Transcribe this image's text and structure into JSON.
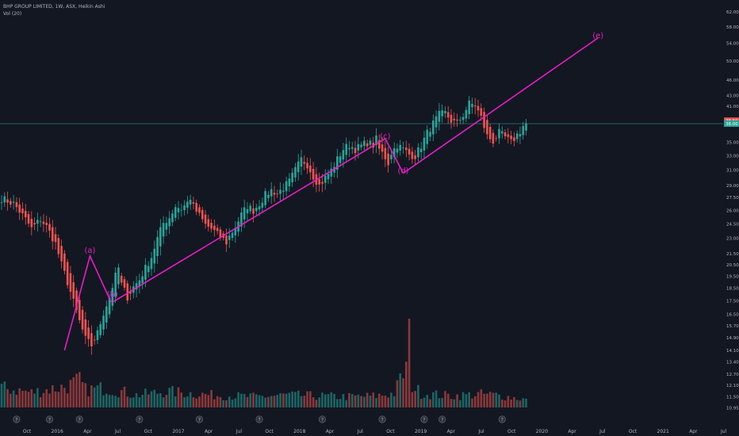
{
  "header": {
    "symbol_line": "BHP GROUP LIMITED, 1W, ASX, Heikin Ashi",
    "volume_line": "Vol (20)"
  },
  "chart_data": {
    "type": "candlestick",
    "title": "BHP GROUP LIMITED, 1W, ASX, Heikin Ashi",
    "price_scale": "log",
    "ylim": [
      10.6,
      63.5
    ],
    "y_ticks": [
      "62.00",
      "58.00",
      "54.00",
      "50.00",
      "46.00",
      "43.00",
      "41.00",
      "38.00",
      "35.00",
      "33.00",
      "31.00",
      "29.00",
      "27.50",
      "26.00",
      "24.50",
      "23.00",
      "21.50",
      "20.50",
      "19.50",
      "18.50",
      "17.50",
      "16.50",
      "15.70",
      "14.90",
      "14.10",
      "13.40",
      "12.70",
      "12.10",
      "11.50",
      "10.95"
    ],
    "x_ticks": [
      "Oct",
      "2016",
      "Apr",
      "Jul",
      "Oct",
      "2017",
      "Apr",
      "Jul",
      "Oct",
      "2018",
      "Apr",
      "Jul",
      "Oct",
      "2019",
      "Apr",
      "Jul",
      "Oct",
      "2020",
      "Apr",
      "Jul",
      "Oct",
      "2021",
      "Apr",
      "Jul"
    ],
    "price_badges": [
      "38.50",
      "38.00"
    ],
    "last_price": 38.0,
    "colors": {
      "up": "#26a69a",
      "down": "#ef5350",
      "annotation": "#e91ec5",
      "price_line": "#26a69a",
      "background": "#131722",
      "axis_text": "#b2b5be"
    },
    "close_path": [
      [
        0,
        27.4
      ],
      [
        4,
        26.8
      ],
      [
        8,
        25.0
      ],
      [
        10,
        24.0
      ],
      [
        13,
        25.0
      ],
      [
        15,
        24.2
      ],
      [
        18,
        22.5
      ],
      [
        20,
        20.5
      ],
      [
        22,
        19.0
      ],
      [
        24,
        17.4
      ],
      [
        26,
        16.0
      ],
      [
        28,
        14.8
      ],
      [
        30,
        14.4
      ],
      [
        32,
        15.2
      ],
      [
        34,
        16.6
      ],
      [
        36,
        17.8
      ],
      [
        38,
        19.5
      ],
      [
        39,
        20.2
      ],
      [
        40,
        18.8
      ],
      [
        42,
        17.8
      ],
      [
        43,
        18.2
      ],
      [
        44,
        18.6
      ],
      [
        46,
        19.2
      ],
      [
        48,
        20.2
      ],
      [
        50,
        21.2
      ],
      [
        52,
        23.0
      ],
      [
        54,
        24.6
      ],
      [
        56,
        25.2
      ],
      [
        58,
        26.5
      ],
      [
        60,
        26.2
      ],
      [
        62,
        26.9
      ],
      [
        63,
        27.5
      ],
      [
        64,
        26.4
      ],
      [
        66,
        25.4
      ],
      [
        68,
        24.4
      ],
      [
        70,
        24.0
      ],
      [
        72,
        23.4
      ],
      [
        74,
        22.9
      ],
      [
        75,
        22.6
      ],
      [
        76,
        23.2
      ],
      [
        78,
        24.2
      ],
      [
        80,
        25.5
      ],
      [
        82,
        26.5
      ],
      [
        84,
        26.0
      ],
      [
        86,
        26.8
      ],
      [
        88,
        27.8
      ],
      [
        90,
        28.4
      ],
      [
        92,
        28.0
      ],
      [
        94,
        28.7
      ],
      [
        96,
        29.5
      ],
      [
        98,
        31.0
      ],
      [
        100,
        32.5
      ],
      [
        102,
        31.8
      ],
      [
        104,
        30.2
      ],
      [
        105,
        29.6
      ],
      [
        106,
        29.0
      ],
      [
        108,
        30.0
      ],
      [
        110,
        31.0
      ],
      [
        112,
        32.5
      ],
      [
        114,
        34.0
      ],
      [
        116,
        34.6
      ],
      [
        118,
        34.0
      ],
      [
        120,
        34.5
      ],
      [
        122,
        35.0
      ],
      [
        124,
        34.6
      ],
      [
        125,
        35.5
      ],
      [
        126,
        34.0
      ],
      [
        128,
        32.8
      ],
      [
        129,
        32.0
      ],
      [
        130,
        33.5
      ],
      [
        132,
        34.6
      ],
      [
        134,
        34.0
      ],
      [
        136,
        33.2
      ],
      [
        138,
        33.0
      ],
      [
        140,
        34.5
      ],
      [
        142,
        36.5
      ],
      [
        144,
        38.0
      ],
      [
        146,
        39.5
      ],
      [
        148,
        39.8
      ],
      [
        150,
        38.5
      ],
      [
        152,
        38.0
      ],
      [
        154,
        39.5
      ],
      [
        156,
        41.5
      ],
      [
        158,
        41.2
      ],
      [
        160,
        39.0
      ],
      [
        161,
        37.5
      ],
      [
        162,
        36.0
      ],
      [
        164,
        35.2
      ],
      [
        166,
        36.5
      ],
      [
        168,
        35.8
      ],
      [
        170,
        35.0
      ],
      [
        172,
        36.2
      ],
      [
        173,
        36.8
      ],
      [
        174,
        37.6
      ],
      [
        175,
        38.0
      ]
    ],
    "volume": {
      "name": "Vol (20)",
      "path": [
        [
          0,
          0.22
        ],
        [
          10,
          0.17
        ],
        [
          22,
          0.24
        ],
        [
          26,
          0.3
        ],
        [
          28,
          0.2
        ],
        [
          35,
          0.22
        ],
        [
          45,
          0.14
        ],
        [
          55,
          0.18
        ],
        [
          70,
          0.14
        ],
        [
          85,
          0.12
        ],
        [
          95,
          0.14
        ],
        [
          105,
          0.13
        ],
        [
          115,
          0.12
        ],
        [
          125,
          0.13
        ],
        [
          131,
          0.16
        ],
        [
          135,
          0.45
        ],
        [
          136,
          0.9
        ],
        [
          137,
          0.25
        ],
        [
          140,
          0.16
        ],
        [
          150,
          0.13
        ],
        [
          160,
          0.15
        ],
        [
          165,
          0.14
        ],
        [
          175,
          0.09
        ]
      ]
    },
    "annotations": [
      {
        "label": "(a)",
        "x": 29.5,
        "price": 21.6
      },
      {
        "label": "(b)",
        "x": 37.0,
        "price": 17.8
      },
      {
        "label": "(c)",
        "x": 128.0,
        "price": 35.6
      },
      {
        "label": "(d)",
        "x": 134.0,
        "price": 30.6
      },
      {
        "label": "(e)",
        "x": 199.0,
        "price": 55.3
      }
    ],
    "wave_lines": [
      [
        [
          21,
          14.1
        ],
        [
          29.5,
          21.3
        ],
        [
          36.5,
          17.4
        ]
      ],
      [
        [
          128,
          35.6
        ],
        [
          134,
          30.6
        ]
      ]
    ],
    "trend_lines": [
      [
        [
          37,
          17.4
        ],
        [
          128,
          35.6
        ]
      ],
      [
        [
          134,
          30.6
        ],
        [
          199,
          55.3
        ]
      ]
    ]
  }
}
